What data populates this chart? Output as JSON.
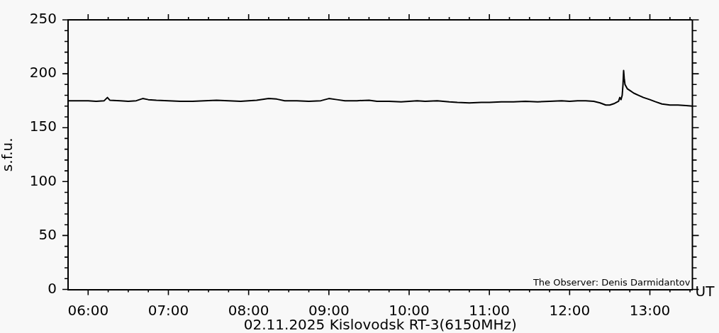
{
  "chart_data": {
    "type": "line",
    "title": "02.11.2025 Kislovodsk RT-3(6150MHz)",
    "xlabel": "UT",
    "ylabel": "s.f.u.",
    "annotations": [
      "The Observer: Denis Darmidantov"
    ],
    "x": [
      5.75,
      5.9,
      6.0,
      6.1,
      6.2,
      6.24,
      6.27,
      6.4,
      6.5,
      6.6,
      6.68,
      6.75,
      6.85,
      7.0,
      7.15,
      7.3,
      7.45,
      7.6,
      7.75,
      7.9,
      8.0,
      8.1,
      8.25,
      8.35,
      8.45,
      8.6,
      8.75,
      8.9,
      9.0,
      9.1,
      9.2,
      9.35,
      9.5,
      9.6,
      9.75,
      9.9,
      10.0,
      10.1,
      10.2,
      10.35,
      10.5,
      10.6,
      10.75,
      10.9,
      11.0,
      11.15,
      11.3,
      11.45,
      11.6,
      11.75,
      11.9,
      12.0,
      12.1,
      12.2,
      12.3,
      12.38,
      12.45,
      12.5,
      12.56,
      12.61,
      12.625,
      12.64,
      12.655,
      12.665,
      12.673,
      12.68,
      12.69,
      12.72,
      12.76,
      12.8,
      12.86,
      12.92,
      13.0,
      13.07,
      13.15,
      13.25,
      13.35,
      13.45,
      13.53
    ],
    "values": [
      175,
      175,
      175,
      174.5,
      175,
      178,
      175.5,
      175,
      174.5,
      175,
      177,
      176,
      175.5,
      175,
      174.5,
      174.5,
      175,
      175.5,
      175,
      174.5,
      175,
      175.5,
      177,
      176.5,
      175,
      175,
      174.5,
      175,
      177,
      176,
      175,
      175,
      175.5,
      174.5,
      174.5,
      174,
      174.5,
      175,
      174.5,
      175,
      174,
      173.5,
      173,
      173.5,
      173.5,
      174,
      174,
      174.5,
      174,
      174.5,
      175,
      174.5,
      175,
      175,
      174.5,
      173,
      171,
      171,
      172.5,
      174.5,
      178,
      176,
      180,
      190,
      203,
      196,
      190,
      186,
      184,
      182,
      180,
      178,
      176,
      174,
      172,
      171,
      171,
      170.5,
      170
    ],
    "color": "#000000",
    "xlim": [
      5.75,
      13.53
    ],
    "xticks": [
      {
        "value": 6,
        "label": "06:00"
      },
      {
        "value": 6.25,
        "label": null
      },
      {
        "value": 6.5,
        "label": null
      },
      {
        "value": 6.75,
        "label": null
      },
      {
        "value": 7,
        "label": "07:00"
      },
      {
        "value": 7.25,
        "label": null
      },
      {
        "value": 7.5,
        "label": null
      },
      {
        "value": 7.75,
        "label": null
      },
      {
        "value": 8,
        "label": "08:00"
      },
      {
        "value": 8.25,
        "label": null
      },
      {
        "value": 8.5,
        "label": null
      },
      {
        "value": 8.75,
        "label": null
      },
      {
        "value": 9,
        "label": "09:00"
      },
      {
        "value": 9.25,
        "label": null
      },
      {
        "value": 9.5,
        "label": null
      },
      {
        "value": 9.75,
        "label": null
      },
      {
        "value": 10,
        "label": "10:00"
      },
      {
        "value": 10.25,
        "label": null
      },
      {
        "value": 10.5,
        "label": null
      },
      {
        "value": 10.75,
        "label": null
      },
      {
        "value": 11,
        "label": "11:00"
      },
      {
        "value": 11.25,
        "label": null
      },
      {
        "value": 11.5,
        "label": null
      },
      {
        "value": 11.75,
        "label": null
      },
      {
        "value": 12,
        "label": "12:00"
      },
      {
        "value": 12.25,
        "label": null
      },
      {
        "value": 12.5,
        "label": null
      },
      {
        "value": 12.75,
        "label": null
      },
      {
        "value": 13,
        "label": "13:00"
      },
      {
        "value": 13.25,
        "label": null
      },
      {
        "value": 13.5,
        "label": null
      }
    ],
    "ylim": [
      0,
      250
    ],
    "yticks": [
      0,
      {
        "value": 10,
        "label": null
      },
      {
        "value": 20,
        "label": null
      },
      {
        "value": 30,
        "label": null
      },
      {
        "value": 40,
        "label": null
      },
      50,
      {
        "value": 60,
        "label": null
      },
      {
        "value": 70,
        "label": null
      },
      {
        "value": 80,
        "label": null
      },
      {
        "value": 90,
        "label": null
      },
      100,
      {
        "value": 110,
        "label": null
      },
      {
        "value": 120,
        "label": null
      },
      {
        "value": 130,
        "label": null
      },
      {
        "value": 140,
        "label": null
      },
      150,
      {
        "value": 160,
        "label": null
      },
      {
        "value": 170,
        "label": null
      },
      {
        "value": 180,
        "label": null
      },
      {
        "value": 190,
        "label": null
      },
      200,
      {
        "value": 210,
        "label": null
      },
      {
        "value": 220,
        "label": null
      },
      {
        "value": 230,
        "label": null
      },
      {
        "value": 240,
        "label": null
      },
      250
    ],
    "grid": false,
    "legend": false,
    "marker": "none",
    "line_style": "solid"
  }
}
